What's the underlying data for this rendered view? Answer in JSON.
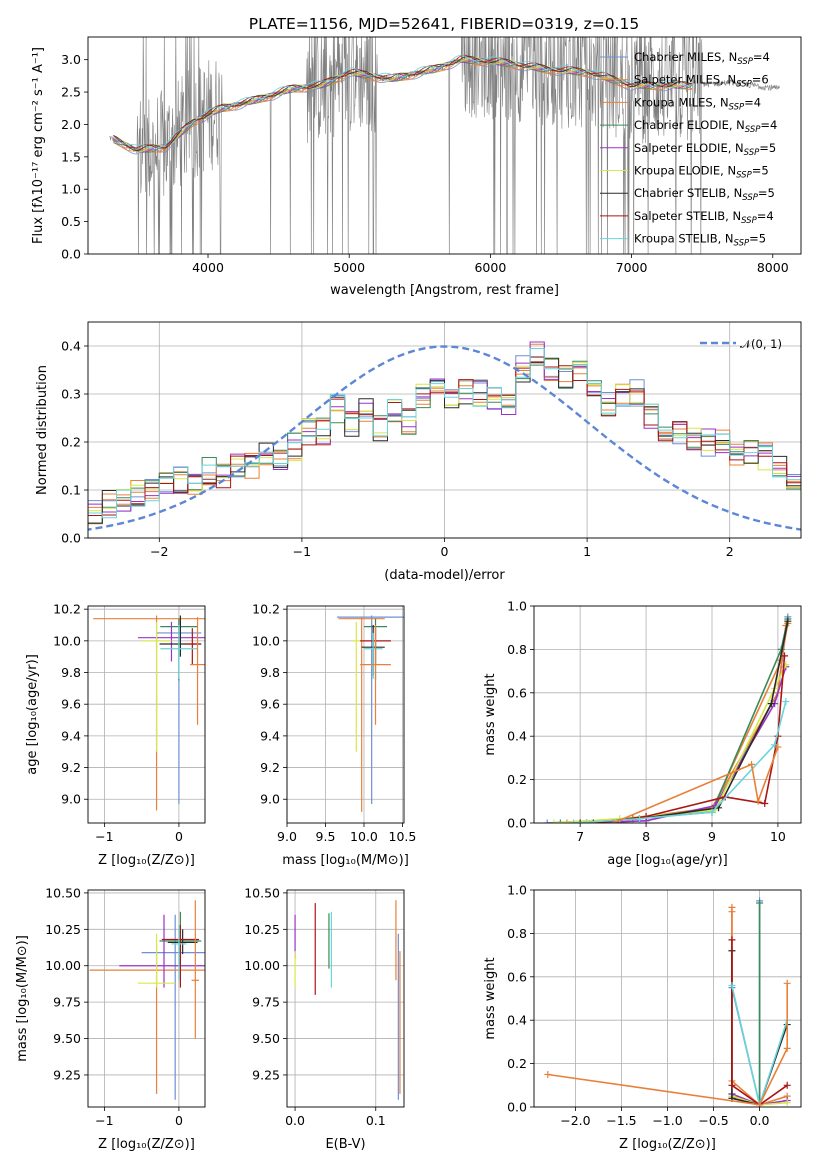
{
  "title": "PLATE=1156, MJD=52641, FIBERID=0319, z=0.15",
  "colors": {
    "data": "#808080",
    "gaussian": "#5b87d6",
    "series": [
      "#6f8fd6",
      "#e8803a",
      "#e8803a",
      "#3a8a5a",
      "#9a33c8",
      "#d6e84a",
      "#2a2a2a",
      "#aa1515",
      "#6ad4d8"
    ]
  },
  "legend": {
    "entries": [
      {
        "main": "Chabrier MILES, N",
        "sub": "SSP",
        "tail": "=4"
      },
      {
        "main": "Salpeter MILES, N",
        "sub": "SSP",
        "tail": "=6"
      },
      {
        "main": "Kroupa MILES, N",
        "sub": "SSP",
        "tail": "=4"
      },
      {
        "main": "Chabrier ELODIE, N",
        "sub": "SSP",
        "tail": "=4"
      },
      {
        "main": "Salpeter ELODIE, N",
        "sub": "SSP",
        "tail": "=5"
      },
      {
        "main": "Kroupa ELODIE, N",
        "sub": "SSP",
        "tail": "=5"
      },
      {
        "main": "Chabrier STELIB, N",
        "sub": "SSP",
        "tail": "=5"
      },
      {
        "main": "Salpeter STELIB, N",
        "sub": "SSP",
        "tail": "=4"
      },
      {
        "main": "Kroupa STELIB, N",
        "sub": "SSP",
        "tail": "=5"
      }
    ],
    "gaussian_label": "𝒩(0, 1)"
  },
  "chart_data": [
    {
      "type": "line",
      "id": "spectrum",
      "xlabel": "wavelength [Angstrom, rest frame]",
      "ylabel": "Flux [fλ10⁻¹⁷ erg cm⁻² s⁻¹ A⁻¹]",
      "xlim": [
        3150,
        8200
      ],
      "ylim": [
        0,
        3.35
      ],
      "xticks": [
        4000,
        5000,
        6000,
        7000,
        8000
      ],
      "yticks": [
        0.0,
        0.5,
        1.0,
        1.5,
        2.0,
        2.5,
        3.0
      ],
      "grid": false,
      "data_range": [
        3300,
        8050
      ],
      "continuum_anchors": {
        "x": [
          3300,
          3500,
          3700,
          3900,
          4100,
          4300,
          4600,
          4800,
          5000,
          5300,
          5600,
          5800,
          6100,
          6400,
          6700,
          7000,
          7400,
          7700,
          8050
        ],
        "y": [
          1.8,
          1.6,
          1.65,
          2.05,
          2.25,
          2.35,
          2.55,
          2.6,
          2.8,
          2.7,
          2.85,
          3.0,
          2.95,
          2.85,
          2.8,
          2.6,
          2.6,
          2.65,
          2.55
        ]
      }
    },
    {
      "type": "histogram",
      "id": "residuals",
      "xlabel": "(data-model)/error",
      "ylabel": "Normed distribution",
      "xlim": [
        -2.5,
        2.5
      ],
      "ylim": [
        0,
        0.45
      ],
      "xticks": [
        -2,
        -1,
        0,
        1,
        2
      ],
      "yticks": [
        0.0,
        0.1,
        0.2,
        0.3,
        0.4
      ],
      "grid": true,
      "legend_position": "top-right",
      "bin_width": 0.1,
      "gaussian": {
        "mean": 0,
        "sigma": 1
      },
      "base_values": [
        0.05,
        0.07,
        0.08,
        0.09,
        0.1,
        0.11,
        0.12,
        0.12,
        0.14,
        0.13,
        0.15,
        0.15,
        0.17,
        0.16,
        0.19,
        0.22,
        0.22,
        0.27,
        0.24,
        0.27,
        0.23,
        0.27,
        0.24,
        0.3,
        0.31,
        0.28,
        0.3,
        0.3,
        0.29,
        0.28,
        0.35,
        0.39,
        0.35,
        0.33,
        0.35,
        0.32,
        0.28,
        0.3,
        0.3,
        0.25,
        0.21,
        0.22,
        0.2,
        0.2,
        0.2,
        0.17,
        0.18,
        0.17,
        0.15,
        0.13,
        0.14,
        0.13,
        0.12,
        0.11,
        0.1,
        0.09,
        0.08,
        0.08,
        0.07,
        0.07,
        0.06,
        0.06,
        0.06,
        0.05,
        0.05,
        0.05,
        0.05,
        0.05,
        0.05,
        0.05
      ]
    },
    {
      "type": "errorbar",
      "id": "age-vs-Z",
      "xlabel": "Z [log₁₀(Z/Z⊙)]",
      "ylabel": "age  [log₁₀(age/yr)]",
      "xlim": [
        -1.22,
        0.35
      ],
      "ylim": [
        8.85,
        10.22
      ],
      "xticks": [
        -1,
        0
      ],
      "yticks": [
        9.0,
        9.2,
        9.4,
        9.6,
        9.8,
        10.0,
        10.2
      ],
      "grid": true,
      "points": [
        {
          "series": 0,
          "x": 0.0,
          "y": 10.05,
          "xerr": 0.3,
          "ylo": 8.97,
          "yhi": 10.14
        },
        {
          "series": 1,
          "x": -0.3,
          "y": 10.14,
          "xerr": 0.85,
          "ylo": 8.93,
          "yhi": 10.16
        },
        {
          "series": 3,
          "x": 0.0,
          "y": 10.09,
          "xerr": 0.25,
          "ylo": 9.75,
          "yhi": 10.14
        },
        {
          "series": 4,
          "x": -0.1,
          "y": 10.02,
          "xerr": 0.45,
          "ylo": 9.87,
          "yhi": 10.12
        },
        {
          "series": 5,
          "x": -0.3,
          "y": 10.0,
          "xerr": 0.2,
          "ylo": 9.3,
          "yhi": 10.12
        },
        {
          "series": 6,
          "x": 0.02,
          "y": 9.98,
          "xerr": 0.28,
          "ylo": 9.9,
          "yhi": 10.16
        },
        {
          "series": 7,
          "x": 0.18,
          "y": 9.98,
          "xerr": 0.1,
          "ylo": 9.85,
          "yhi": 10.08
        },
        {
          "series": 8,
          "x": 0.0,
          "y": 9.95,
          "xerr": 0.25,
          "ylo": 9.76,
          "yhi": 10.1
        },
        {
          "series": 2,
          "x": 0.25,
          "y": 9.85,
          "xerr": 0.1,
          "ylo": 9.47,
          "yhi": 10.15
        }
      ]
    },
    {
      "type": "errorbar",
      "id": "age-vs-mass",
      "xlabel": "mass [log₁₀(M/M⊙)]",
      "ylabel": "",
      "xlim": [
        9.0,
        10.52
      ],
      "ylim": [
        8.85,
        10.22
      ],
      "xticks": [
        9.0,
        9.5,
        10.0,
        10.5
      ],
      "yticks": [
        9.0,
        9.2,
        9.4,
        9.6,
        9.8,
        10.0,
        10.2
      ],
      "grid": true,
      "points": [
        {
          "series": 0,
          "x": 10.1,
          "y": 10.15,
          "xerr": 0.45,
          "ylo": 8.97,
          "yhi": 10.16
        },
        {
          "series": 1,
          "x": 9.97,
          "y": 10.14,
          "xerr": 0.3,
          "ylo": 8.92,
          "yhi": 10.15
        },
        {
          "series": 3,
          "x": 10.15,
          "y": 10.09,
          "xerr": 0.15,
          "ylo": 9.75,
          "yhi": 10.14
        },
        {
          "series": 5,
          "x": 9.9,
          "y": 10.0,
          "xerr": 0.05,
          "ylo": 9.3,
          "yhi": 10.12
        },
        {
          "series": 7,
          "x": 10.15,
          "y": 10.0,
          "xerr": 0.2,
          "ylo": 9.85,
          "yhi": 10.08
        },
        {
          "series": 6,
          "x": 10.12,
          "y": 9.96,
          "xerr": 0.15,
          "ylo": 9.78,
          "yhi": 10.1
        },
        {
          "series": 8,
          "x": 10.12,
          "y": 9.95,
          "xerr": 0.12,
          "ylo": 9.76,
          "yhi": 10.05
        },
        {
          "series": 2,
          "x": 10.15,
          "y": 9.85,
          "xerr": 0.2,
          "ylo": 9.47,
          "yhi": 10.1
        }
      ]
    },
    {
      "type": "line",
      "id": "weight-vs-age",
      "xlabel": "age  [log₁₀(age/yr)]",
      "ylabel": "mass weight",
      "xlim": [
        6.3,
        10.35
      ],
      "ylim": [
        0,
        1.0
      ],
      "xticks": [
        7,
        8,
        9,
        10
      ],
      "yticks": [
        0.0,
        0.2,
        0.4,
        0.6,
        0.8,
        1.0
      ],
      "grid": true,
      "series": [
        {
          "x": [
            6.5,
            7.8,
            9.0,
            10.0,
            10.15
          ],
          "y": [
            0.0,
            0.02,
            0.05,
            0.6,
            0.95
          ]
        },
        {
          "x": [
            6.8,
            7.8,
            9.0,
            10.05,
            10.15
          ],
          "y": [
            0.0,
            0.02,
            0.06,
            0.75,
            0.92
          ]
        },
        {
          "x": [
            7.0,
            8.0,
            9.0,
            10.0,
            10.12
          ],
          "y": [
            0.0,
            0.03,
            0.07,
            0.6,
            0.91
          ]
        },
        {
          "x": [
            6.7,
            7.8,
            9.0,
            10.05,
            10.15
          ],
          "y": [
            0.0,
            0.02,
            0.05,
            0.8,
            0.94
          ]
        },
        {
          "x": [
            7.1,
            8.0,
            9.05,
            9.95,
            10.12
          ],
          "y": [
            0.0,
            0.01,
            0.08,
            0.55,
            0.72
          ]
        },
        {
          "x": [
            6.6,
            7.6,
            9.05,
            9.95,
            10.12
          ],
          "y": [
            0.0,
            0.02,
            0.06,
            0.62,
            0.73
          ]
        },
        {
          "x": [
            7.0,
            7.9,
            9.1,
            9.9,
            10.15
          ],
          "y": [
            0.0,
            0.02,
            0.07,
            0.55,
            0.93
          ]
        },
        {
          "x": [
            7.2,
            8.0,
            9.2,
            9.8,
            10.0,
            10.1
          ],
          "y": [
            0.0,
            0.03,
            0.12,
            0.09,
            0.4,
            0.77
          ]
        },
        {
          "x": [
            6.9,
            7.9,
            9.0,
            9.95,
            10.12
          ],
          "y": [
            0.0,
            0.02,
            0.05,
            0.36,
            0.56
          ]
        },
        {
          "x": [
            7.5,
            9.6,
            9.7,
            10.0
          ],
          "y": [
            0.0,
            0.27,
            0.1,
            0.35
          ]
        }
      ],
      "series_colors": [
        0,
        1,
        2,
        3,
        4,
        5,
        6,
        7,
        8,
        2
      ]
    },
    {
      "type": "errorbar",
      "id": "mass-vs-Z",
      "xlabel": "Z [log₁₀(Z/Z⊙)]",
      "ylabel": "mass [log₁₀(M/M⊙)]",
      "xlim": [
        -1.22,
        0.35
      ],
      "ylim": [
        9.03,
        10.52
      ],
      "xticks": [
        -1,
        0
      ],
      "yticks": [
        9.25,
        9.5,
        9.75,
        10.0,
        10.25,
        10.5
      ],
      "grid": true,
      "points": [
        {
          "series": 0,
          "x": -0.05,
          "y": 10.09,
          "xerr": 0.45,
          "ylo": 9.08,
          "yhi": 10.35
        },
        {
          "series": 1,
          "x": -0.3,
          "y": 9.97,
          "xerr": 0.9,
          "ylo": 9.12,
          "yhi": 10.15
        },
        {
          "series": 3,
          "x": 0.02,
          "y": 10.17,
          "xerr": 0.28,
          "ylo": 10.0,
          "yhi": 10.37
        },
        {
          "series": 4,
          "x": -0.2,
          "y": 10.0,
          "xerr": 0.6,
          "ylo": 9.85,
          "yhi": 10.35
        },
        {
          "series": 5,
          "x": -0.3,
          "y": 9.88,
          "xerr": 0.25,
          "ylo": 9.85,
          "yhi": 10.22
        },
        {
          "series": 6,
          "x": 0.05,
          "y": 10.16,
          "xerr": 0.2,
          "ylo": 10.08,
          "yhi": 10.25
        },
        {
          "series": 7,
          "x": 0.02,
          "y": 10.18,
          "xerr": 0.25,
          "ylo": 9.85,
          "yhi": 10.28
        },
        {
          "series": 8,
          "x": 0.0,
          "y": 10.15,
          "xerr": 0.1,
          "ylo": 9.9,
          "yhi": 10.28
        },
        {
          "series": 2,
          "x": 0.22,
          "y": 9.9,
          "xerr": 0.05,
          "ylo": 9.5,
          "yhi": 10.45
        }
      ]
    },
    {
      "type": "errorbar",
      "id": "mass-vs-ebv",
      "xlabel": "E(B-V)",
      "ylabel": "",
      "xlim": [
        -0.01,
        0.135
      ],
      "ylim": [
        9.03,
        10.52
      ],
      "xticks": [
        0.0,
        0.1
      ],
      "yticks": [
        9.25,
        9.5,
        9.75,
        10.0,
        10.25,
        10.5
      ],
      "grid": true,
      "points": [
        {
          "series": 4,
          "x": 0.0,
          "y": 10.2,
          "ylo": 10.05,
          "yhi": 10.35
        },
        {
          "series": 5,
          "x": 0.0,
          "y": 9.95,
          "ylo": 9.85,
          "yhi": 10.1
        },
        {
          "series": 7,
          "x": 0.025,
          "y": 10.1,
          "ylo": 9.8,
          "yhi": 10.43
        },
        {
          "series": 3,
          "x": 0.042,
          "y": 10.17,
          "ylo": 9.98,
          "yhi": 10.36
        },
        {
          "series": 8,
          "x": 0.045,
          "y": 10.15,
          "ylo": 9.85,
          "yhi": 10.37
        },
        {
          "series": 2,
          "x": 0.125,
          "y": 10.15,
          "ylo": 9.9,
          "yhi": 10.45
        },
        {
          "series": 0,
          "x": 0.128,
          "y": 10.0,
          "ylo": 9.08,
          "yhi": 10.22
        },
        {
          "series": 1,
          "x": 0.13,
          "y": 9.8,
          "ylo": 9.12,
          "yhi": 10.1
        }
      ]
    },
    {
      "type": "line",
      "id": "weight-vs-Z",
      "xlabel": "Z [log₁₀(Z/Z⊙)]",
      "ylabel": "mass weight",
      "xlim": [
        -2.45,
        0.45
      ],
      "ylim": [
        0,
        1.0
      ],
      "xticks": [
        -2.0,
        -1.5,
        -1.0,
        -0.5,
        0.0
      ],
      "yticks": [
        0.0,
        0.2,
        0.4,
        0.6,
        0.8,
        1.0
      ],
      "grid": true,
      "series": [
        {
          "x": [
            -0.3,
            0.0,
            0.0
          ],
          "y": [
            0.55,
            0.01,
            0.95
          ]
        },
        {
          "x": [
            -0.3,
            -0.3,
            0.0,
            0.3
          ],
          "y": [
            0.92,
            0.05,
            0.01,
            0.05
          ]
        },
        {
          "x": [
            -0.3,
            -0.3,
            0.0
          ],
          "y": [
            0.9,
            0.12,
            0.01
          ]
        },
        {
          "x": [
            -0.3,
            -0.3,
            0.0,
            0.0
          ],
          "y": [
            0.06,
            0.04,
            0.01,
            0.94
          ]
        },
        {
          "x": [
            -0.3,
            0.0,
            0.3
          ],
          "y": [
            0.06,
            0.01,
            0.03
          ]
        },
        {
          "x": [
            -0.3,
            0.0,
            0.3
          ],
          "y": [
            0.05,
            0.01,
            0.02
          ]
        },
        {
          "x": [
            -0.3,
            -0.3,
            0.0,
            0.3
          ],
          "y": [
            0.72,
            0.04,
            0.01,
            0.38
          ]
        },
        {
          "x": [
            -0.3,
            -0.3,
            0.0,
            0.3
          ],
          "y": [
            0.77,
            0.1,
            0.01,
            0.1
          ]
        },
        {
          "x": [
            -0.3,
            0.0,
            0.3
          ],
          "y": [
            0.56,
            0.01,
            0.4
          ]
        },
        {
          "x": [
            -2.3,
            0.0,
            0.3,
            0.3
          ],
          "y": [
            0.15,
            0.01,
            0.27,
            0.57
          ]
        }
      ],
      "series_colors": [
        0,
        1,
        2,
        3,
        4,
        5,
        6,
        7,
        8,
        2
      ]
    }
  ]
}
